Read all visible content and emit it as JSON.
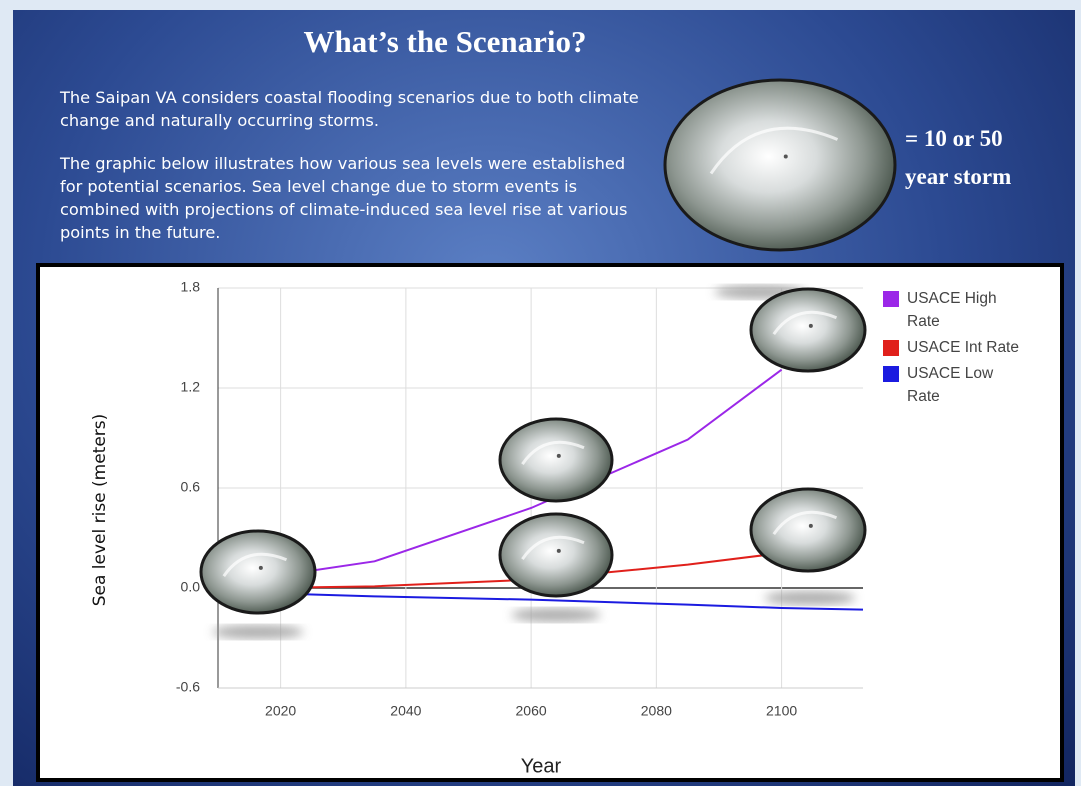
{
  "slide": {
    "title": "What’s the Scenario?",
    "paragraphs": [
      "The Saipan VA considers coastal flooding scenarios due to both climate change and naturally occurring storms.",
      "The graphic below illustrates how various sea levels were established for potential scenarios. Sea level change due to storm events is combined with projections of climate-induced sea level rise at various points in the future."
    ],
    "storm_label": [
      "= 10  or 50",
      "year storm"
    ]
  },
  "chart_data": {
    "type": "line",
    "x_label": "Year",
    "y_label": "Sea level rise (meters)",
    "x": [
      2017,
      2035,
      2060,
      2085,
      2100,
      2113
    ],
    "series": [
      {
        "name": "USACE High Rate",
        "color": "#9b27e8",
        "values": [
          0.06,
          0.16,
          0.48,
          0.89,
          1.31,
          null
        ]
      },
      {
        "name": "USACE Int Rate",
        "color": "#e0201b",
        "values": [
          0.0,
          0.01,
          0.05,
          0.14,
          0.21,
          null
        ]
      },
      {
        "name": "USACE Low Rate",
        "color": "#1b1be0",
        "values": [
          -0.03,
          -0.05,
          -0.07,
          -0.1,
          -0.12,
          -0.13
        ]
      }
    ],
    "xlim": [
      2010,
      2113
    ],
    "xticks": [
      2020,
      2040,
      2060,
      2080,
      2100
    ],
    "ylim": [
      -0.6,
      1.8
    ],
    "yticks": [
      -0.6,
      {
        "value": 0,
        "label": "0.0"
      },
      0.6,
      1.2,
      1.8
    ],
    "grid": true,
    "legend": "right"
  }
}
